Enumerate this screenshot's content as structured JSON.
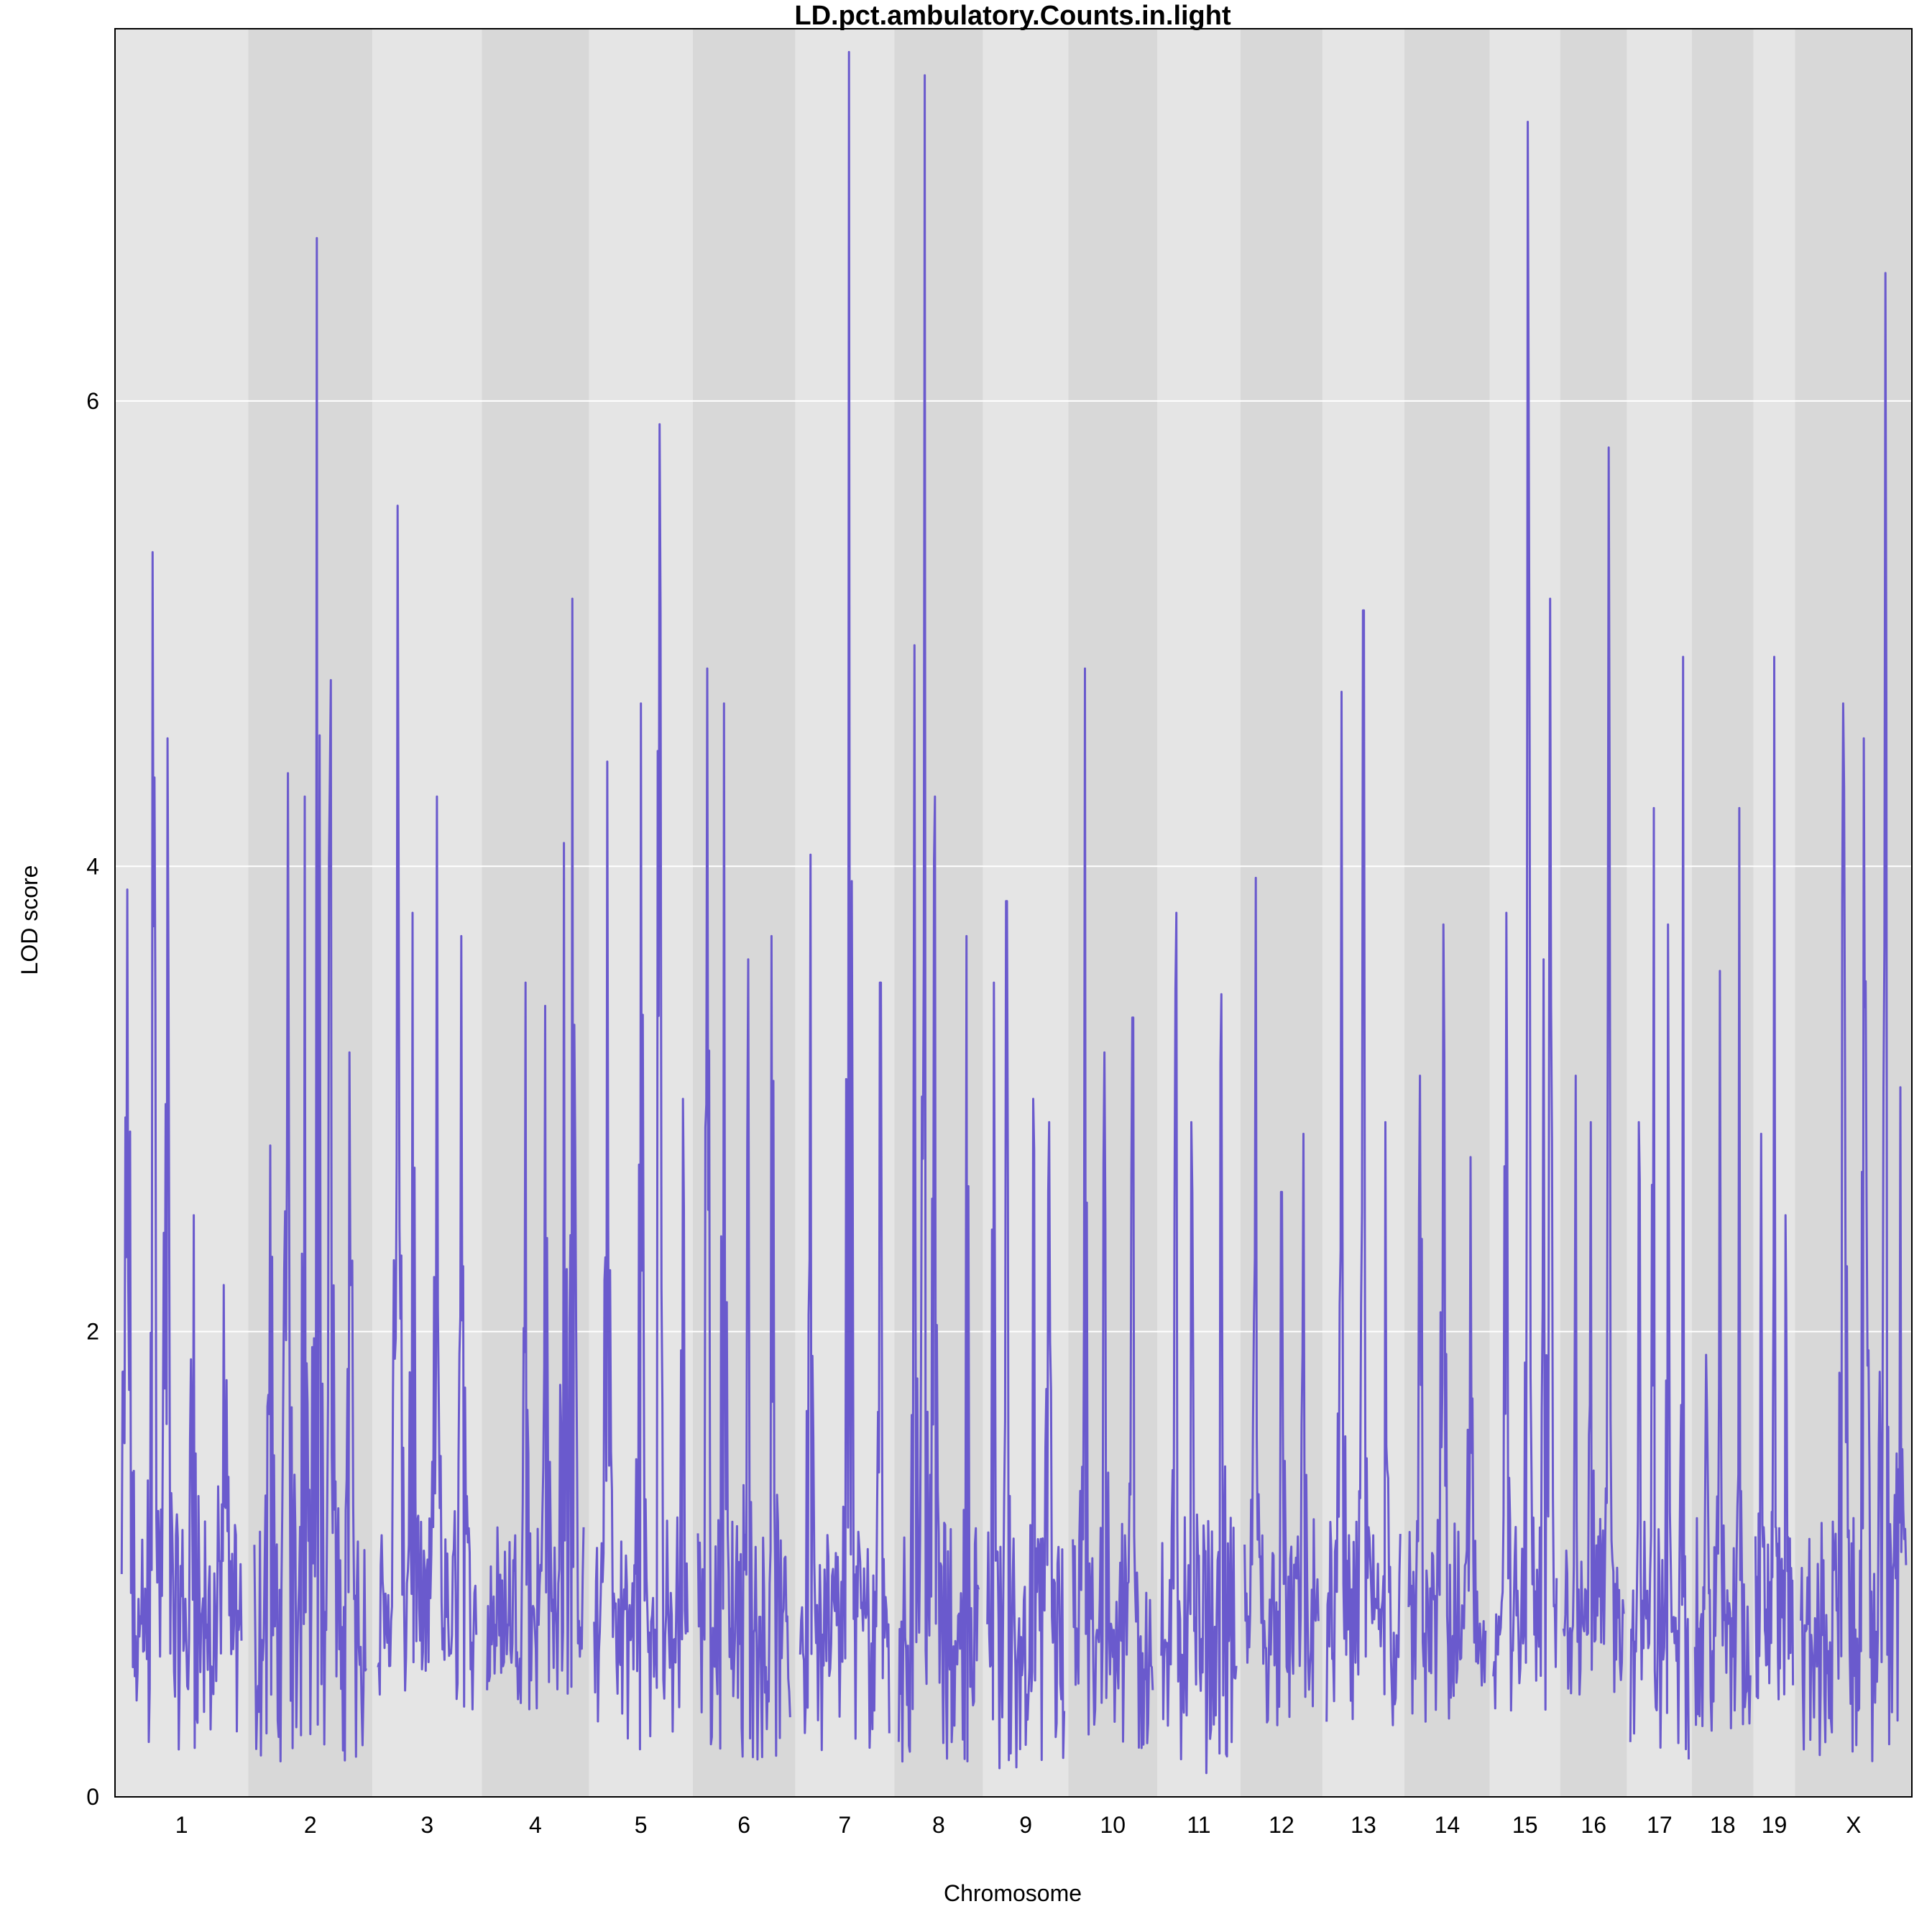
{
  "chart_data": {
    "type": "line",
    "title": "LD.pct.ambulatory.Counts.in.light",
    "xlabel": "Chromosome",
    "ylabel": "LOD score",
    "ylim": [
      0,
      7.6
    ],
    "yticks": [
      0,
      2,
      4,
      6
    ],
    "grid": "horizontal lines at y ticks",
    "background_bands": "alternating light and dark gray per chromosome",
    "line_color": "#6a5acd",
    "band_colors": [
      "#e5e5e5",
      "#d8d8d8"
    ],
    "series": [
      {
        "chromosomes": [
          {
            "name": "1",
            "length": 195,
            "peaks": [
              [
                0.05,
                3.9
              ],
              [
                0.26,
                5.35
              ],
              [
                0.38,
                4.55
              ],
              [
                0.6,
                2.5
              ],
              [
                0.85,
                2.2
              ]
            ],
            "min": 0.2
          },
          {
            "name": "2",
            "length": 182,
            "peaks": [
              [
                0.14,
                2.8
              ],
              [
                0.3,
                4.4
              ],
              [
                0.45,
                4.3
              ],
              [
                0.56,
                6.7
              ],
              [
                0.68,
                4.8
              ],
              [
                0.85,
                3.2
              ]
            ],
            "min": 0.15
          },
          {
            "name": "3",
            "length": 160,
            "peaks": [
              [
                0.2,
                5.55
              ],
              [
                0.35,
                3.8
              ],
              [
                0.6,
                4.3
              ],
              [
                0.85,
                3.7
              ]
            ],
            "min": 0.35
          },
          {
            "name": "4",
            "length": 157,
            "peaks": [
              [
                0.4,
                3.5
              ],
              [
                0.6,
                3.4
              ],
              [
                0.8,
                4.1
              ],
              [
                0.88,
                5.15
              ]
            ],
            "min": 0.35
          },
          {
            "name": "5",
            "length": 152,
            "peaks": [
              [
                0.14,
                4.45
              ],
              [
                0.5,
                4.7
              ],
              [
                0.7,
                5.9
              ],
              [
                0.95,
                3.0
              ]
            ],
            "min": 0.2
          },
          {
            "name": "6",
            "length": 150,
            "peaks": [
              [
                0.1,
                4.85
              ],
              [
                0.28,
                4.7
              ],
              [
                0.55,
                3.6
              ],
              [
                0.8,
                3.7
              ]
            ],
            "min": 0.15
          },
          {
            "name": "7",
            "length": 145,
            "peaks": [
              [
                0.12,
                4.05
              ],
              [
                0.55,
                7.5
              ],
              [
                0.9,
                3.5
              ]
            ],
            "min": 0.2
          },
          {
            "name": "8",
            "length": 130,
            "peaks": [
              [
                0.2,
                4.95
              ],
              [
                0.32,
                7.4
              ],
              [
                0.45,
                4.3
              ],
              [
                0.85,
                3.7
              ]
            ],
            "min": 0.15
          },
          {
            "name": "9",
            "length": 125,
            "peaks": [
              [
                0.08,
                3.5
              ],
              [
                0.25,
                3.85
              ],
              [
                0.6,
                3.0
              ],
              [
                0.8,
                2.9
              ]
            ],
            "min": 0.1
          },
          {
            "name": "10",
            "length": 130,
            "peaks": [
              [
                0.15,
                4.85
              ],
              [
                0.4,
                3.2
              ],
              [
                0.75,
                3.35
              ]
            ],
            "min": 0.15
          },
          {
            "name": "11",
            "length": 122,
            "peaks": [
              [
                0.2,
                3.8
              ],
              [
                0.4,
                2.9
              ],
              [
                0.8,
                3.45
              ]
            ],
            "min": 0.1
          },
          {
            "name": "12",
            "length": 120,
            "peaks": [
              [
                0.15,
                3.95
              ],
              [
                0.5,
                2.6
              ],
              [
                0.8,
                2.85
              ]
            ],
            "min": 0.3
          },
          {
            "name": "13",
            "length": 120,
            "peaks": [
              [
                0.2,
                4.75
              ],
              [
                0.5,
                5.1
              ],
              [
                0.8,
                2.9
              ]
            ],
            "min": 0.25
          },
          {
            "name": "14",
            "length": 125,
            "peaks": [
              [
                0.15,
                3.1
              ],
              [
                0.45,
                3.75
              ],
              [
                0.8,
                2.75
              ]
            ],
            "min": 0.25
          },
          {
            "name": "15",
            "length": 103,
            "peaks": [
              [
                0.2,
                3.8
              ],
              [
                0.55,
                7.2
              ],
              [
                0.8,
                3.6
              ],
              [
                0.9,
                5.15
              ]
            ],
            "min": 0.2
          },
          {
            "name": "16",
            "length": 98,
            "peaks": [
              [
                0.2,
                3.1
              ],
              [
                0.45,
                2.9
              ],
              [
                0.75,
                5.8
              ]
            ],
            "min": 0.4
          },
          {
            "name": "17",
            "length": 95,
            "peaks": [
              [
                0.15,
                2.9
              ],
              [
                0.4,
                4.25
              ],
              [
                0.65,
                3.75
              ],
              [
                0.9,
                4.9
              ]
            ],
            "min": 0.15
          },
          {
            "name": "18",
            "length": 90,
            "peaks": [
              [
                0.2,
                1.9
              ],
              [
                0.45,
                3.55
              ],
              [
                0.8,
                4.25
              ]
            ],
            "min": 0.2
          },
          {
            "name": "19",
            "length": 61,
            "peaks": [
              [
                0.15,
                2.85
              ],
              [
                0.5,
                4.9
              ],
              [
                0.8,
                2.5
              ]
            ],
            "min": 0.4
          },
          {
            "name": "X",
            "length": 171,
            "peaks": [
              [
                0.4,
                4.7
              ],
              [
                0.6,
                4.55
              ],
              [
                0.8,
                6.55
              ],
              [
                0.95,
                3.05
              ]
            ],
            "min": 0.15
          }
        ]
      }
    ]
  }
}
